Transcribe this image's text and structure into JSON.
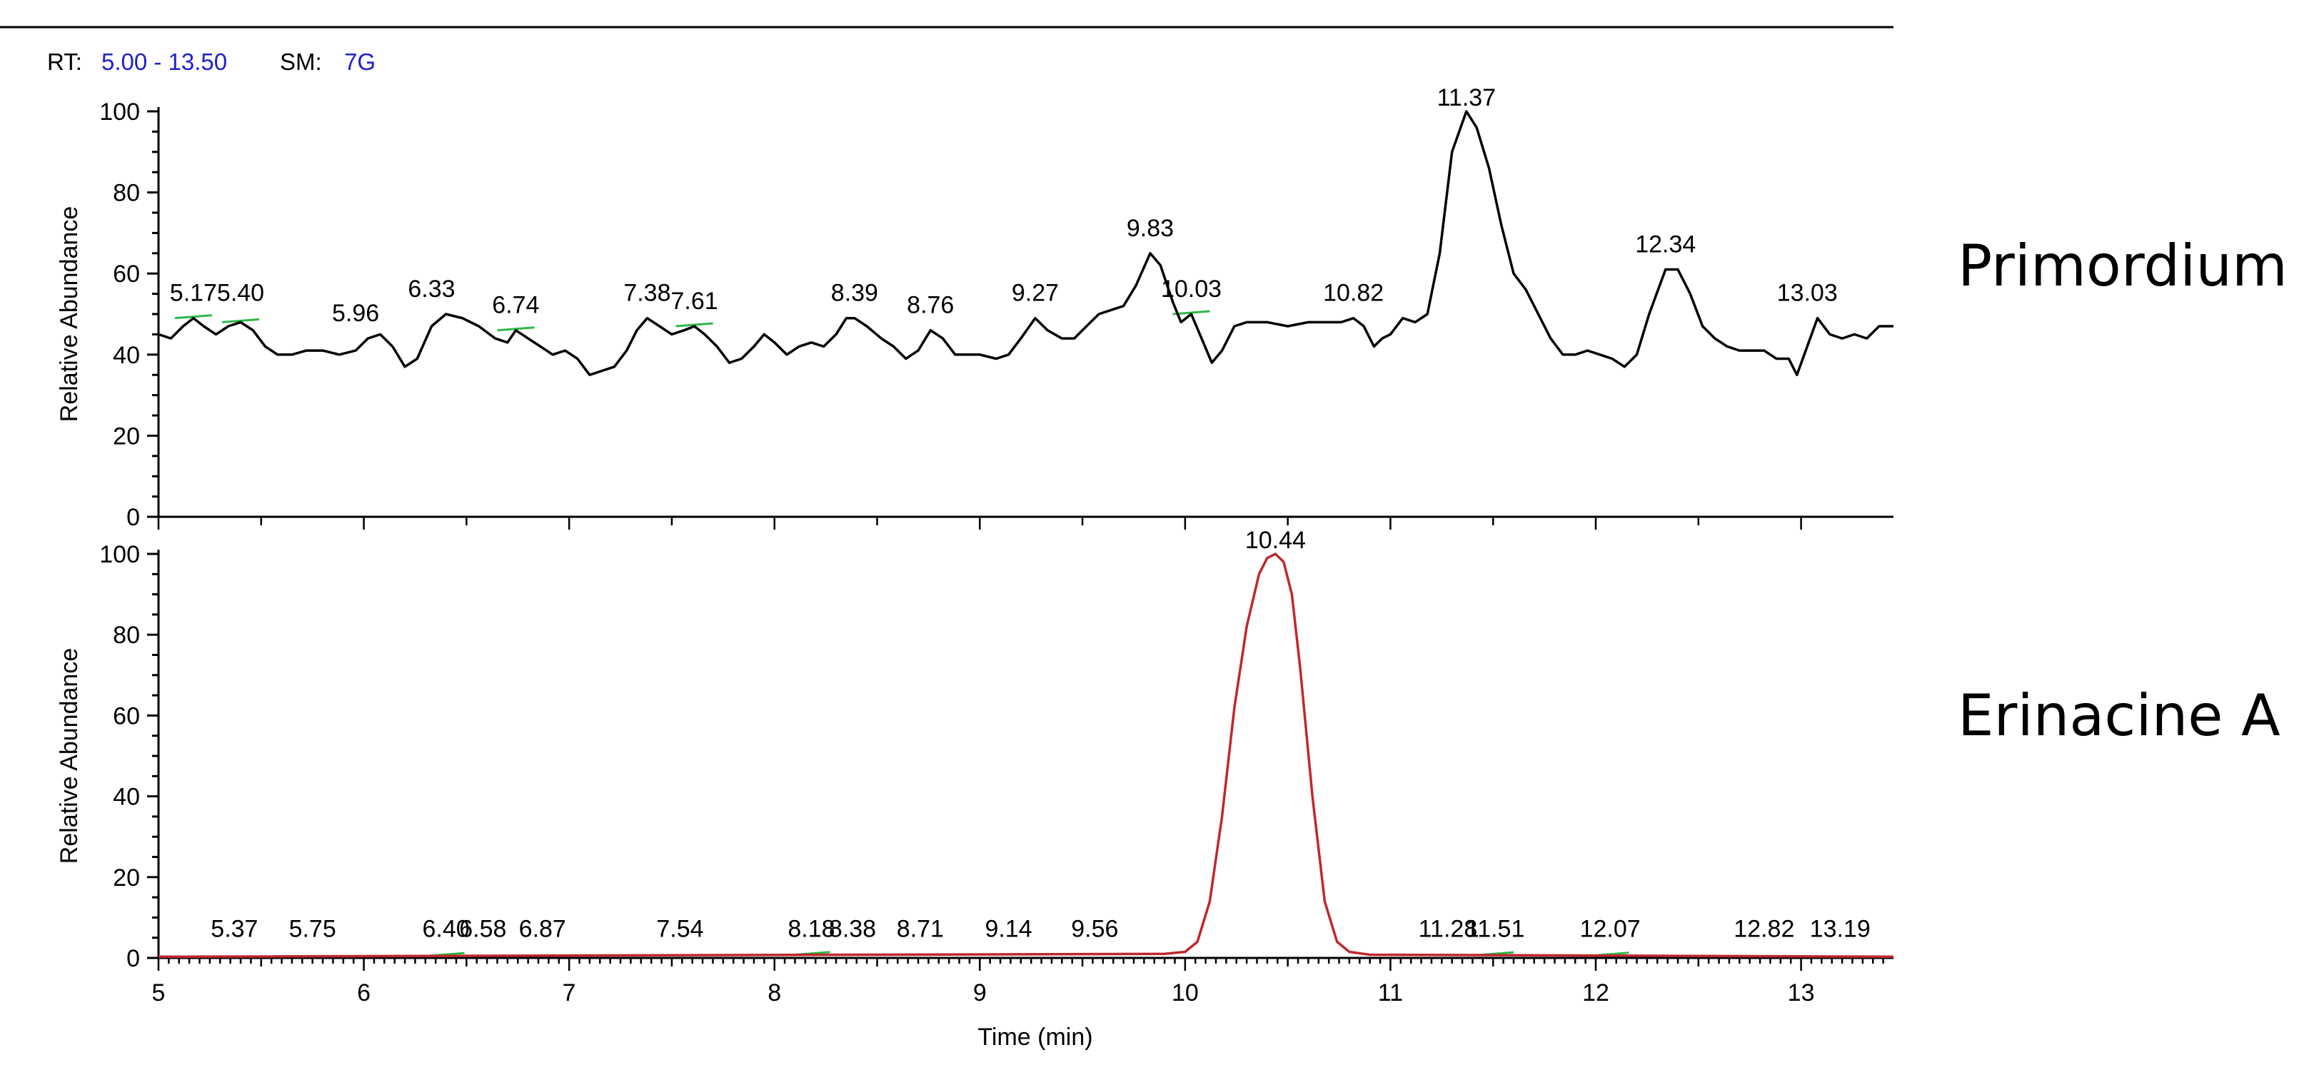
{
  "header": {
    "rt_label": "RT:",
    "rt_value": "5.00 - 13.50",
    "sm_label": "SM:",
    "sm_value": "7G",
    "value_color": "#1f1fcf"
  },
  "chart_data": [
    {
      "type": "line",
      "title": "Primordium",
      "xlabel": "",
      "ylabel": "Relative Abundance",
      "xlim": [
        5.0,
        13.45
      ],
      "ylim": [
        0,
        100
      ],
      "yticks": [
        0,
        20,
        40,
        60,
        80,
        100
      ],
      "line_color": "#000000",
      "series": [
        {
          "x": [
            5.0,
            5.06,
            5.12,
            5.17,
            5.22,
            5.28,
            5.34,
            5.4,
            5.46,
            5.52,
            5.58,
            5.65,
            5.72,
            5.8,
            5.88,
            5.96,
            6.02,
            6.08,
            6.14,
            6.2,
            6.26,
            6.33,
            6.4,
            6.48,
            6.56,
            6.64,
            6.7,
            6.74,
            6.8,
            6.86,
            6.92,
            6.98,
            7.04,
            7.1,
            7.16,
            7.22,
            7.28,
            7.33,
            7.38,
            7.44,
            7.5,
            7.56,
            7.61,
            7.66,
            7.72,
            7.78,
            7.84,
            7.9,
            7.95,
            8.0,
            8.06,
            8.12,
            8.18,
            8.24,
            8.3,
            8.35,
            8.39,
            8.45,
            8.52,
            8.58,
            8.64,
            8.7,
            8.76,
            8.82,
            8.88,
            8.94,
            9.0,
            9.08,
            9.14,
            9.2,
            9.27,
            9.33,
            9.4,
            9.46,
            9.52,
            9.58,
            9.64,
            9.7,
            9.76,
            9.83,
            9.88,
            9.94,
            9.98,
            10.03,
            10.08,
            10.13,
            10.18,
            10.24,
            10.3,
            10.4,
            10.5,
            10.6,
            10.7,
            10.76,
            10.82,
            10.87,
            10.92,
            10.96,
            11.0,
            11.06,
            11.12,
            11.18,
            11.24,
            11.3,
            11.37,
            11.42,
            11.48,
            11.54,
            11.6,
            11.66,
            11.72,
            11.78,
            11.84,
            11.9,
            11.96,
            12.02,
            12.08,
            12.14,
            12.2,
            12.26,
            12.34,
            12.4,
            12.46,
            12.52,
            12.58,
            12.64,
            12.7,
            12.76,
            12.82,
            12.88,
            12.94,
            12.98,
            13.03,
            13.08,
            13.14,
            13.2,
            13.26,
            13.32,
            13.38,
            13.45
          ],
          "y": [
            45,
            44,
            47,
            49,
            47,
            45,
            47,
            48,
            46,
            42,
            40,
            40,
            41,
            41,
            40,
            41,
            44,
            45,
            42,
            37,
            39,
            47,
            50,
            49,
            47,
            44,
            43,
            46,
            44,
            42,
            40,
            41,
            39,
            35,
            36,
            37,
            41,
            46,
            49,
            47,
            45,
            46,
            47,
            45,
            42,
            38,
            39,
            42,
            45,
            43,
            40,
            42,
            43,
            42,
            45,
            49,
            49,
            47,
            44,
            42,
            39,
            41,
            46,
            44,
            40,
            40,
            40,
            39,
            40,
            44,
            49,
            46,
            44,
            44,
            47,
            50,
            51,
            52,
            57,
            65,
            62,
            53,
            48,
            50,
            44,
            38,
            41,
            47,
            48,
            48,
            47,
            48,
            48,
            48,
            49,
            47,
            42,
            44,
            45,
            49,
            48,
            50,
            65,
            90,
            100,
            96,
            86,
            72,
            60,
            56,
            50,
            44,
            40,
            40,
            41,
            40,
            39,
            37,
            40,
            50,
            61,
            61,
            55,
            47,
            44,
            42,
            41,
            41,
            41,
            39,
            39,
            35,
            42,
            49,
            45,
            44,
            45,
            44,
            47,
            47
          ]
        }
      ],
      "peak_labels": [
        {
          "x": 5.17,
          "y": 49,
          "text": "5.17"
        },
        {
          "x": 5.4,
          "y": 49,
          "text": "5.40"
        },
        {
          "x": 5.96,
          "y": 44,
          "text": "5.96"
        },
        {
          "x": 6.33,
          "y": 50,
          "text": "6.33"
        },
        {
          "x": 6.74,
          "y": 46,
          "text": "6.74"
        },
        {
          "x": 7.38,
          "y": 49,
          "text": "7.38"
        },
        {
          "x": 7.61,
          "y": 47,
          "text": "7.61"
        },
        {
          "x": 8.39,
          "y": 49,
          "text": "8.39"
        },
        {
          "x": 8.76,
          "y": 46,
          "text": "8.76"
        },
        {
          "x": 9.27,
          "y": 49,
          "text": "9.27"
        },
        {
          "x": 9.83,
          "y": 65,
          "text": "9.83"
        },
        {
          "x": 10.03,
          "y": 50,
          "text": "10.03"
        },
        {
          "x": 10.82,
          "y": 49,
          "text": "10.82"
        },
        {
          "x": 11.37,
          "y": 100,
          "text": "11.37"
        },
        {
          "x": 12.34,
          "y": 61,
          "text": "12.34"
        },
        {
          "x": 13.03,
          "y": 49,
          "text": "13.03"
        }
      ],
      "label_markers": [
        5.4,
        7.61,
        10.03,
        6.74,
        5.17
      ],
      "marker_color": "#2db84a"
    },
    {
      "type": "line",
      "title": "Erinacine A",
      "xlabel": "Time (min)",
      "ylabel": "Relative Abundance",
      "xlim": [
        5.0,
        13.45
      ],
      "ylim": [
        0,
        100
      ],
      "xticks": [
        5,
        6,
        7,
        8,
        9,
        10,
        11,
        12,
        13
      ],
      "yticks": [
        0,
        20,
        40,
        60,
        80,
        100
      ],
      "line_color": "#c0282d",
      "series": [
        {
          "x": [
            5.0,
            9.9,
            10.0,
            10.06,
            10.12,
            10.18,
            10.24,
            10.3,
            10.36,
            10.4,
            10.44,
            10.48,
            10.52,
            10.56,
            10.62,
            10.68,
            10.74,
            10.8,
            10.9,
            13.45
          ],
          "y": [
            0.3,
            1.0,
            1.5,
            4,
            14,
            35,
            62,
            82,
            95,
            99,
            100,
            98,
            90,
            72,
            40,
            14,
            4,
            1.5,
            0.8,
            0.3
          ]
        }
      ],
      "peak_labels": [
        {
          "x": 5.37,
          "y": 1,
          "text": "5.37"
        },
        {
          "x": 5.75,
          "y": 1,
          "text": "5.75"
        },
        {
          "x": 6.4,
          "y": 1,
          "text": "6.40"
        },
        {
          "x": 6.58,
          "y": 1,
          "text": "6.58"
        },
        {
          "x": 6.87,
          "y": 1,
          "text": "6.87"
        },
        {
          "x": 7.54,
          "y": 1,
          "text": "7.54"
        },
        {
          "x": 8.18,
          "y": 1,
          "text": "8.18"
        },
        {
          "x": 8.38,
          "y": 1,
          "text": "8.38"
        },
        {
          "x": 8.71,
          "y": 1,
          "text": "8.71"
        },
        {
          "x": 9.14,
          "y": 1,
          "text": "9.14"
        },
        {
          "x": 9.56,
          "y": 1,
          "text": "9.56"
        },
        {
          "x": 10.44,
          "y": 100,
          "text": "10.44"
        },
        {
          "x": 11.28,
          "y": 1,
          "text": "11.28"
        },
        {
          "x": 11.51,
          "y": 1,
          "text": "11.51"
        },
        {
          "x": 12.07,
          "y": 1,
          "text": "12.07"
        },
        {
          "x": 12.82,
          "y": 1,
          "text": "12.82"
        },
        {
          "x": 13.19,
          "y": 1,
          "text": "13.19"
        }
      ],
      "label_markers": [
        6.4,
        8.18,
        11.51,
        12.07
      ],
      "marker_color": "#2db84a"
    }
  ]
}
